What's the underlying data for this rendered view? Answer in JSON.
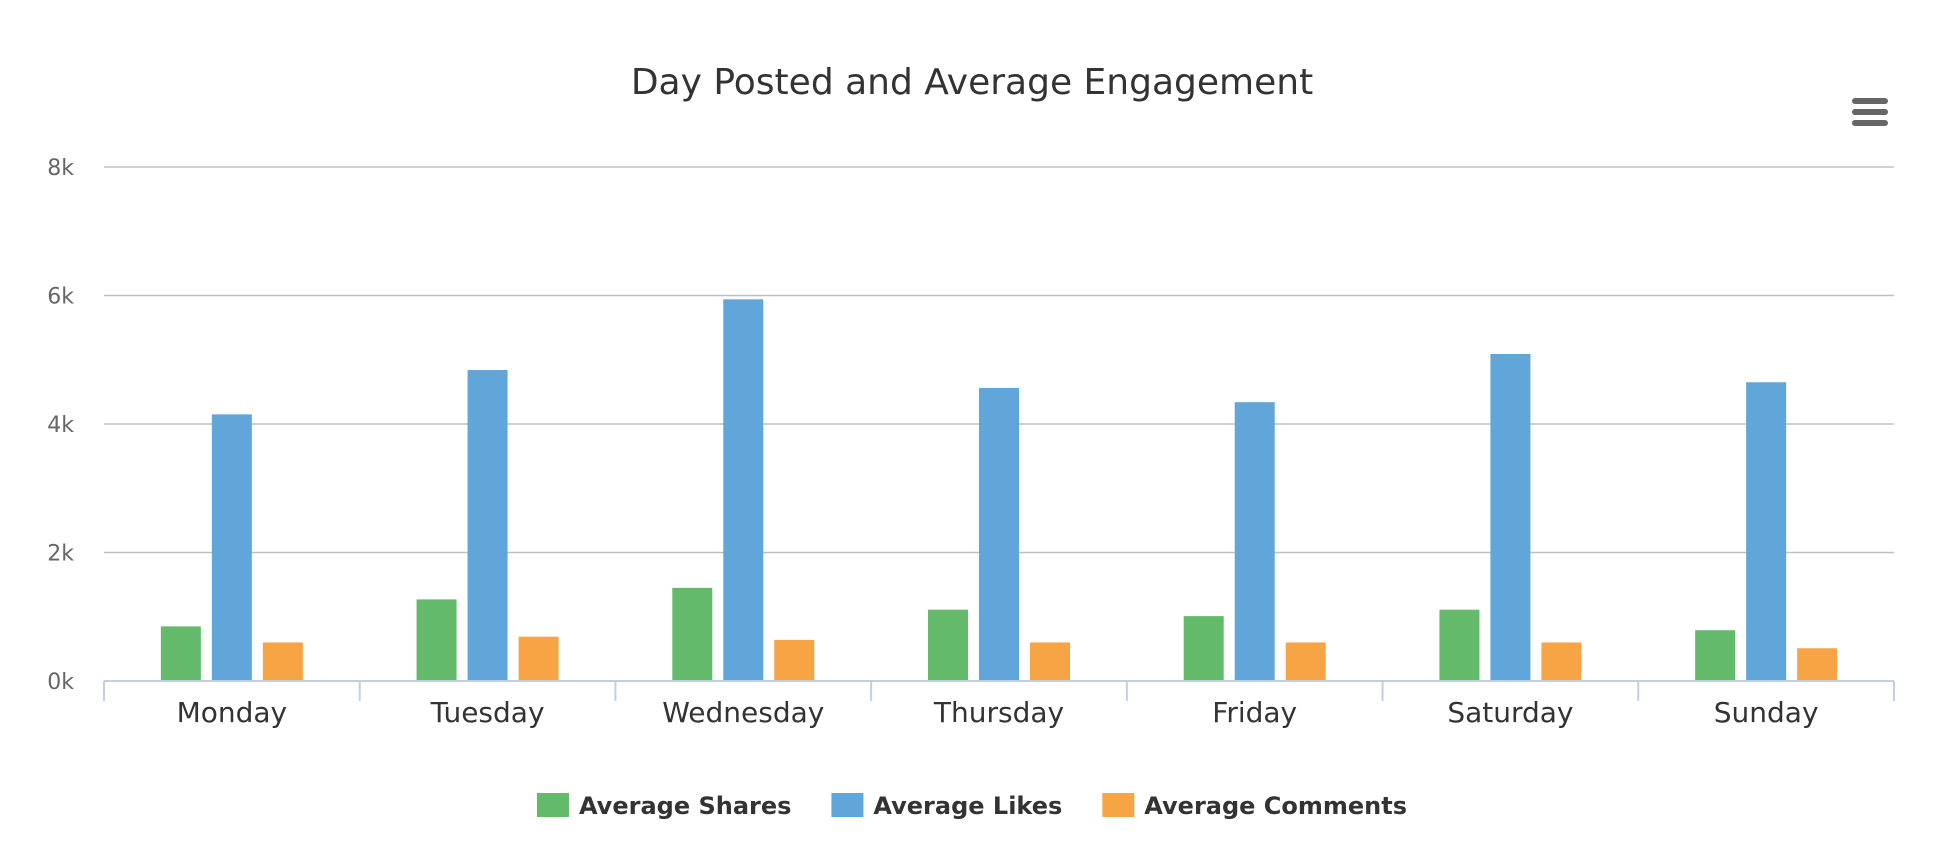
{
  "menu": {
    "icon": "hamburger-menu-icon"
  },
  "chart_data": {
    "type": "bar",
    "title": "Day Posted and Average Engagement",
    "xlabel": "",
    "ylabel": "",
    "categories": [
      "Monday",
      "Tuesday",
      "Wednesday",
      "Thursday",
      "Friday",
      "Saturday",
      "Sunday"
    ],
    "series": [
      {
        "name": "Average Shares",
        "color": "#63ba6a",
        "values": [
          850,
          1270,
          1450,
          1110,
          1010,
          1110,
          790
        ]
      },
      {
        "name": "Average Likes",
        "color": "#61a6d9",
        "values": [
          4150,
          4840,
          5940,
          4560,
          4340,
          5090,
          4650
        ]
      },
      {
        "name": "Average Comments",
        "color": "#f7a445",
        "values": [
          600,
          690,
          640,
          600,
          600,
          600,
          510
        ]
      }
    ],
    "ylim": [
      0,
      8000
    ],
    "yticks": [
      0,
      2000,
      4000,
      6000,
      8000
    ],
    "ytick_labels": [
      "0k",
      "2k",
      "4k",
      "6k",
      "8k"
    ],
    "grid": true,
    "legend_position": "bottom-center"
  }
}
